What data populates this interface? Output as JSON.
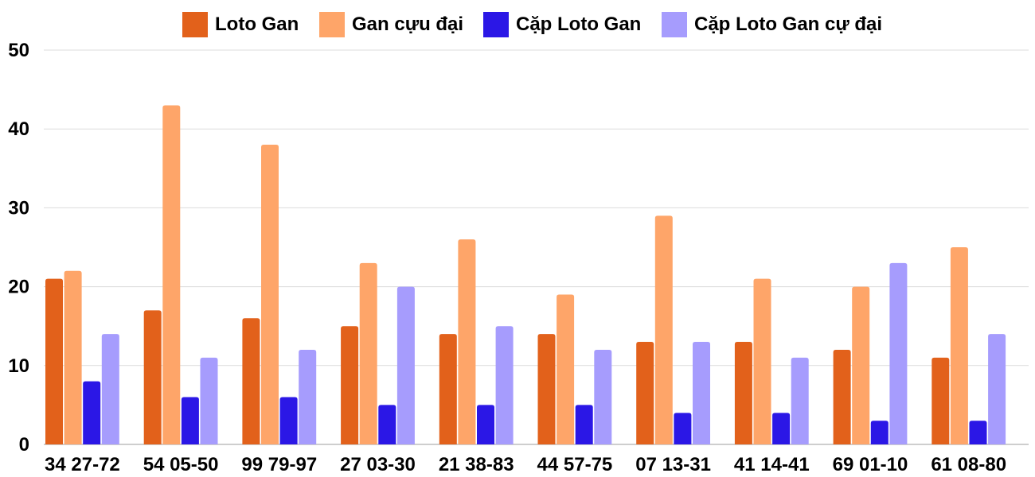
{
  "chart_data": {
    "type": "bar",
    "title": "",
    "xlabel": "",
    "ylabel": "",
    "ylim": [
      0,
      50
    ],
    "yticks": [
      0,
      10,
      20,
      30,
      40,
      50
    ],
    "grid": true,
    "legend_position": "top-center",
    "categories": [
      "34 27-72",
      "54 05-50",
      "99 79-97",
      "27 03-30",
      "21 38-83",
      "44 57-75",
      "07 13-31",
      "41 14-41",
      "69 01-10",
      "61 08-80"
    ],
    "series": [
      {
        "name": "Loto Gan",
        "color": "#e2611b",
        "values": [
          21,
          17,
          16,
          15,
          14,
          14,
          13,
          13,
          12,
          11
        ]
      },
      {
        "name": "Gan cựu đại",
        "color": "#fea569",
        "values": [
          22,
          43,
          38,
          23,
          26,
          19,
          29,
          21,
          20,
          25
        ]
      },
      {
        "name": "Cặp Loto Gan",
        "color": "#2b17e6",
        "values": [
          8,
          6,
          6,
          5,
          5,
          5,
          4,
          4,
          3,
          3
        ]
      },
      {
        "name": "Cặp Loto Gan cự đại",
        "color": "#a69cfd",
        "values": [
          14,
          11,
          12,
          20,
          15,
          12,
          13,
          11,
          23,
          14
        ]
      }
    ]
  }
}
